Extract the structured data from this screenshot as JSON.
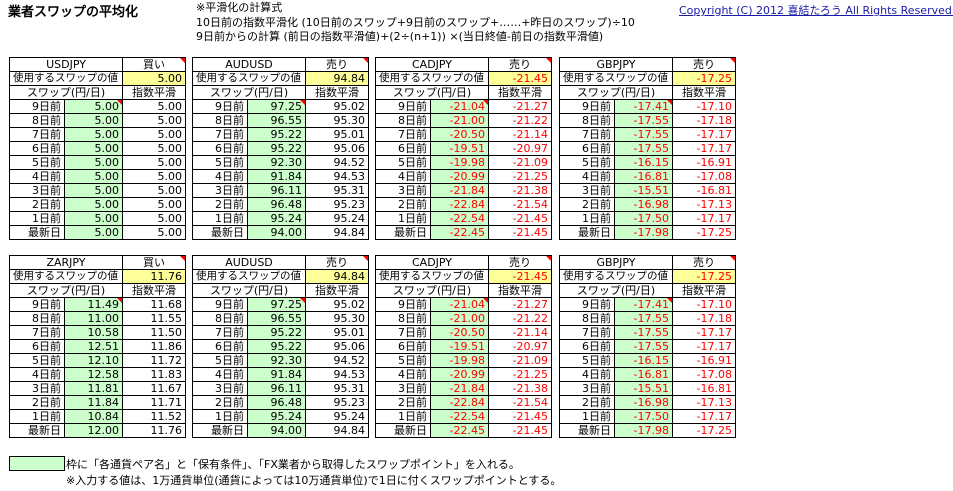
{
  "title": "業者スワップの平均化",
  "formula": [
    "※平滑化の計算式",
    "10日前の指数平滑化 (10日前のスワップ+9日前のスワップ+……+昨日のスワップ)÷10",
    "9日前からの計算 (前日の指数平滑値)+(2÷(n+1)) ×(当日終値-前日の指数平滑値)"
  ],
  "copyright": "Copyright (C) 2012 喜結たろう All Rights Reserved.",
  "labels": {
    "use_value": "使用するスワップの値",
    "swap_col": "スワップ(円/日)",
    "smooth_col": "指数平滑"
  },
  "row_labels": [
    "9日前",
    "8日前",
    "7日前",
    "6日前",
    "5日前",
    "4日前",
    "3日前",
    "2日前",
    "1日前",
    "最新日"
  ],
  "blocks": [
    {
      "pair": "USDJPY",
      "side": "買い",
      "value": "5.00",
      "swaps": [
        "5.00",
        "5.00",
        "5.00",
        "5.00",
        "5.00",
        "5.00",
        "5.00",
        "5.00",
        "5.00",
        "5.00"
      ],
      "smooth": [
        "5.00",
        "5.00",
        "5.00",
        "5.00",
        "5.00",
        "5.00",
        "5.00",
        "5.00",
        "5.00",
        "5.00"
      ]
    },
    {
      "pair": "AUDUSD",
      "side": "売り",
      "value": "94.84",
      "swaps": [
        "97.25",
        "96.55",
        "95.22",
        "95.22",
        "92.30",
        "91.84",
        "96.11",
        "96.48",
        "95.24",
        "94.00"
      ],
      "smooth": [
        "95.02",
        "95.30",
        "95.01",
        "95.06",
        "94.52",
        "94.53",
        "95.31",
        "95.23",
        "95.24",
        "94.84"
      ]
    },
    {
      "pair": "CADJPY",
      "side": "売り",
      "value": "-21.45",
      "swaps": [
        "-21.04",
        "-21.00",
        "-20.50",
        "-19.51",
        "-19.98",
        "-20.99",
        "-21.84",
        "-22.84",
        "-22.54",
        "-22.45"
      ],
      "smooth": [
        "-21.27",
        "-21.22",
        "-21.14",
        "-20.97",
        "-21.09",
        "-21.25",
        "-21.38",
        "-21.54",
        "-21.45",
        "-21.45"
      ]
    },
    {
      "pair": "GBPJPY",
      "side": "売り",
      "value": "-17.25",
      "swaps": [
        "-17.41",
        "-17.55",
        "-17.55",
        "-17.55",
        "-16.15",
        "-16.81",
        "-15.51",
        "-16.98",
        "-17.50",
        "-17.98"
      ],
      "smooth": [
        "-17.10",
        "-17.18",
        "-17.17",
        "-17.17",
        "-16.91",
        "-17.08",
        "-16.81",
        "-17.13",
        "-17.17",
        "-17.25"
      ]
    },
    {
      "pair": "ZARJPY",
      "side": "買い",
      "value": "11.76",
      "swaps": [
        "11.49",
        "11.00",
        "10.58",
        "12.51",
        "12.10",
        "12.58",
        "11.81",
        "11.84",
        "10.84",
        "12.00"
      ],
      "smooth": [
        "11.68",
        "11.55",
        "11.50",
        "11.86",
        "11.72",
        "11.83",
        "11.67",
        "11.71",
        "11.52",
        "11.76"
      ]
    },
    {
      "pair": "AUDUSD",
      "side": "売り",
      "value": "94.84",
      "swaps": [
        "97.25",
        "96.55",
        "95.22",
        "95.22",
        "92.30",
        "91.84",
        "96.11",
        "96.48",
        "95.24",
        "94.00"
      ],
      "smooth": [
        "95.02",
        "95.30",
        "95.01",
        "95.06",
        "94.52",
        "94.53",
        "95.31",
        "95.23",
        "95.24",
        "94.84"
      ]
    },
    {
      "pair": "CADJPY",
      "side": "売り",
      "value": "-21.45",
      "swaps": [
        "-21.04",
        "-21.00",
        "-20.50",
        "-19.51",
        "-19.98",
        "-20.99",
        "-21.84",
        "-22.84",
        "-22.54",
        "-22.45"
      ],
      "smooth": [
        "-21.27",
        "-21.22",
        "-21.14",
        "-20.97",
        "-21.09",
        "-21.25",
        "-21.38",
        "-21.54",
        "-21.45",
        "-21.45"
      ]
    },
    {
      "pair": "GBPJPY",
      "side": "売り",
      "value": "-17.25",
      "swaps": [
        "-17.41",
        "-17.55",
        "-17.55",
        "-17.55",
        "-16.15",
        "-16.81",
        "-15.51",
        "-16.98",
        "-17.50",
        "-17.98"
      ],
      "smooth": [
        "-17.10",
        "-17.18",
        "-17.17",
        "-17.17",
        "-16.91",
        "-17.08",
        "-16.81",
        "-17.13",
        "-17.17",
        "-17.25"
      ]
    }
  ],
  "legend": {
    "note1": "枠に「各通貨ペア名」と「保有条件」、「FX業者から取得したスワップポイント」を入れる。",
    "note2": "※入力する値は、1万通貨単位(通貨によっては10万通貨単位)で1日に付くスワップポイントとする。"
  }
}
